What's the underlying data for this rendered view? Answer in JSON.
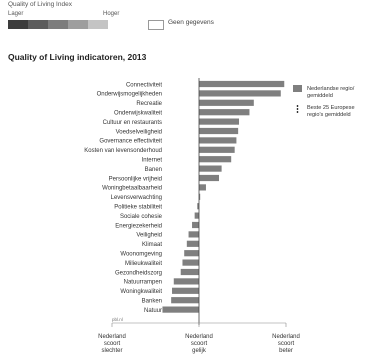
{
  "legend": {
    "title": "Quality of Living Index",
    "low": "Lager",
    "high": "Hoger",
    "scale_colors": [
      "#3c3c3c",
      "#5c5c5c",
      "#7d7d7d",
      "#9e9e9e",
      "#c4c4c4"
    ],
    "no_data": "Geen gegevens"
  },
  "chart_data": {
    "type": "bar",
    "orientation": "horizontal",
    "title": "Quality of Living indicatoren, 2013",
    "categories": [
      "Connectiviteit",
      "Onderwijsmogelijkheden",
      "Recreatie",
      "Onderwijskwaliteit",
      "Cultuur en restaurants",
      "Voedselveiligheid",
      "Governance effectiviteit",
      "Kosten van levensonderhoud",
      "Internet",
      "Banen",
      "Persoonlijke vrijheid",
      "Woningbetaalbaarheid",
      "Levensverwachting",
      "Politieke stabiliteit",
      "Sociale cohesie",
      "Energiezekerheid",
      "Veiligheid",
      "Klimaat",
      "Woonomgeving",
      "Milieukwaliteit",
      "Gezondheidszorg",
      "Natuurrampen",
      "Woningkwaliteit",
      "Banken",
      "Natuur"
    ],
    "series": [
      {
        "name": "Nederlandse regio/ gemiddeld",
        "color": "#7f7f7f",
        "values": [
          0.98,
          0.94,
          0.63,
          0.58,
          0.46,
          0.45,
          0.43,
          0.41,
          0.37,
          0.26,
          0.23,
          0.08,
          0.01,
          -0.02,
          -0.05,
          -0.08,
          -0.12,
          -0.14,
          -0.17,
          -0.19,
          -0.21,
          -0.29,
          -0.31,
          -0.32,
          -0.42
        ]
      }
    ],
    "axis_unit_label": "pbl.nl",
    "xlim": [
      -1,
      1
    ],
    "x_axis_labels": [
      "Nederland scoort slechter",
      "Nederland scoort gelijk",
      "Nederland scoort beter"
    ],
    "legend_entries": [
      {
        "label": "Nederlandse regio/ gemiddeld",
        "style": "bar"
      },
      {
        "label": "Beste 25 Europese regio's gemiddeld",
        "style": "line"
      }
    ],
    "legend_position": "top-right"
  }
}
